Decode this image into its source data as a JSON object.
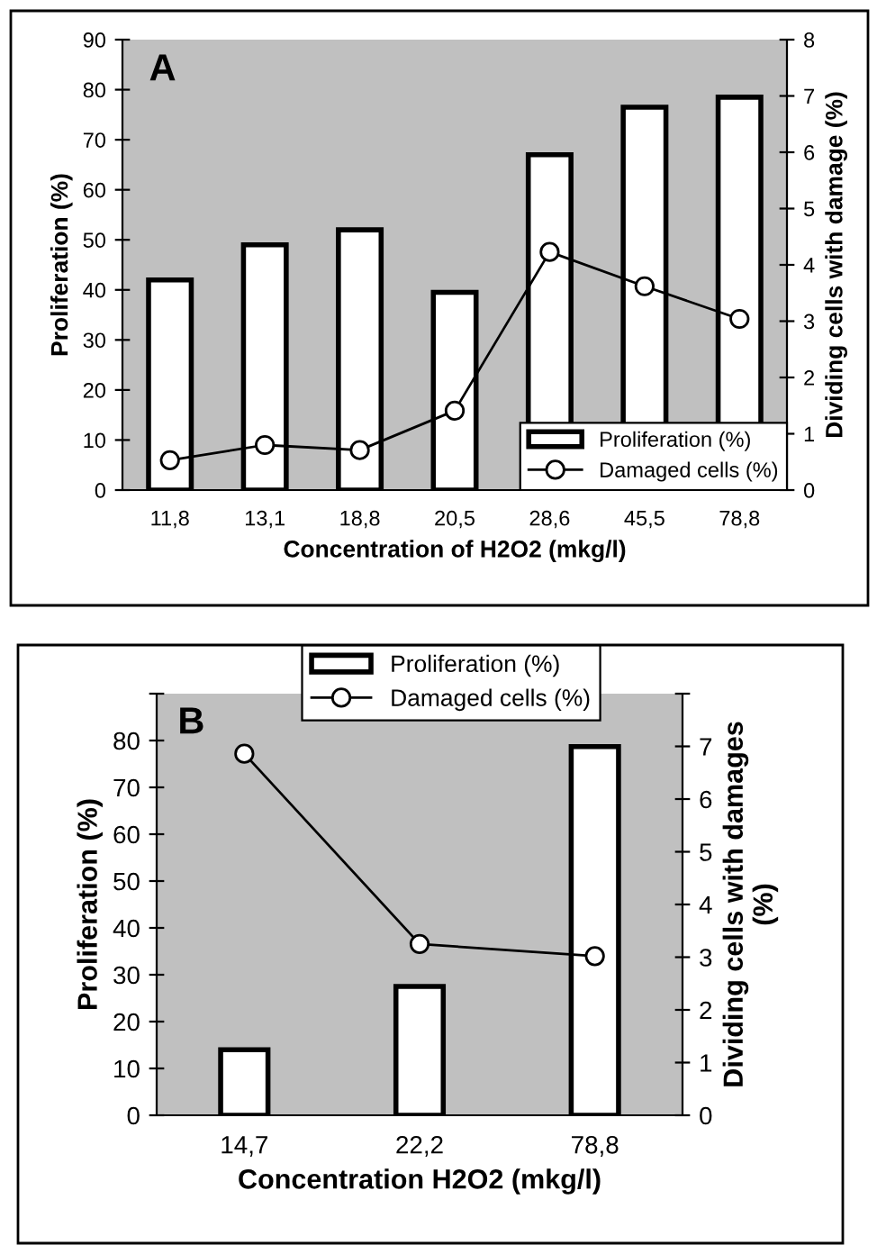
{
  "chart_data": [
    {
      "type": "bar",
      "categories": [
        "11,8",
        "13,1",
        "18,8",
        "20,5",
        "28,6",
        "45,5",
        "78,8"
      ],
      "xlabel": "Concentration of H2O2 (mkg/l)",
      "ylabel": "Proliferation (%)",
      "y2label": "Dividing cells with damage (%)",
      "annotations": [
        "A"
      ],
      "ylim": [
        0,
        90
      ],
      "yticks": [
        0,
        10,
        20,
        30,
        40,
        50,
        60,
        70,
        80,
        90
      ],
      "y2lim": [
        0,
        8
      ],
      "y2ticks": [
        0,
        1,
        2,
        3,
        4,
        5,
        6,
        7,
        8
      ],
      "legend": "bottom right",
      "grid": false,
      "series": [
        {
          "name": "Proliferation (%)",
          "color": "#ffffff",
          "values": [
            42,
            49,
            52,
            39.5,
            67,
            76.5,
            78.5
          ]
        },
        {
          "name": "Damaged cells (%)",
          "type": "line",
          "axis": "y2",
          "color": "#000000",
          "marker": "circle",
          "values": [
            0.53,
            0.8,
            0.71,
            1.41,
            4.23,
            3.62,
            3.04
          ]
        }
      ]
    },
    {
      "type": "bar",
      "categories": [
        "14,7",
        "22,2",
        "78,8"
      ],
      "xlabel": "Concentration H2O2 (mkg/l)",
      "ylabel": "Proliferation (%)",
      "y2label": "Dividing cells with damages\n(%)",
      "annotations": [
        "B"
      ],
      "ylim": [
        0,
        90
      ],
      "yticks": [
        0,
        10,
        20,
        30,
        40,
        50,
        60,
        70,
        80,
        {
          "value": 90,
          "label": null
        }
      ],
      "y2lim": [
        0,
        8
      ],
      "y2ticks": [
        0,
        1,
        2,
        3,
        4,
        5,
        6,
        7,
        {
          "value": 8,
          "label": null
        }
      ],
      "legend": "top",
      "grid": false,
      "series": [
        {
          "name": "Proliferation (%)",
          "color": "#ffffff",
          "values": [
            14,
            27.5,
            78.7
          ]
        },
        {
          "name": "Damaged cells (%)",
          "type": "line",
          "axis": "y2",
          "color": "#000000",
          "marker": "circle",
          "values": [
            6.86,
            3.25,
            3.02
          ]
        }
      ]
    }
  ]
}
